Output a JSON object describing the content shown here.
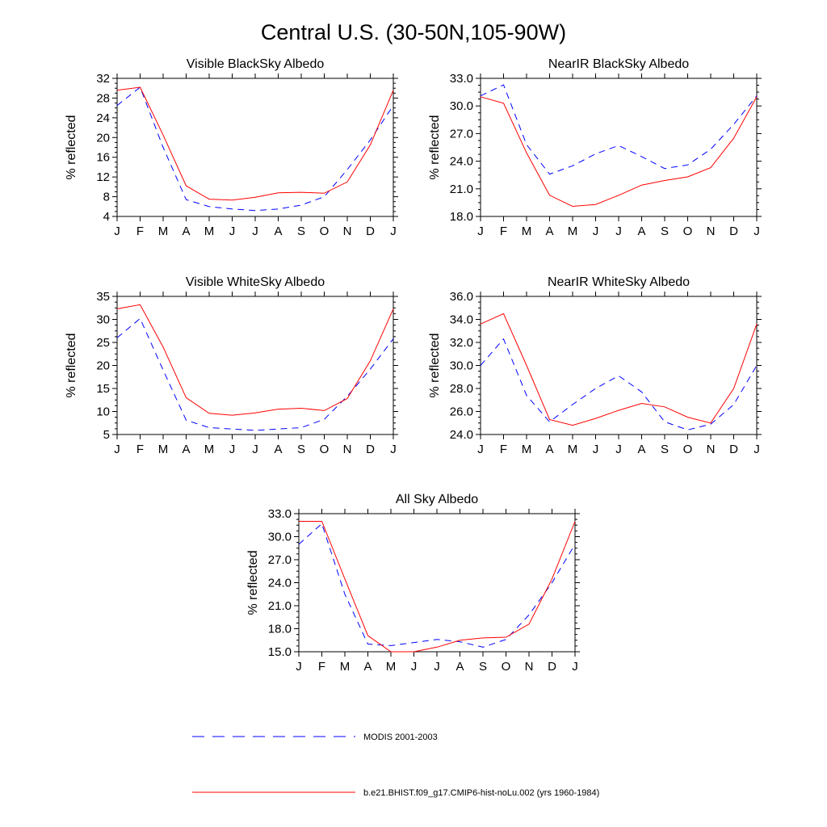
{
  "figure": {
    "title": "Central U.S. (30-50N,105-90W)",
    "colors": {
      "modis": "#0000ff",
      "model": "#ff0000"
    }
  },
  "legend": {
    "entries": [
      {
        "label": "MODIS 2001-2003",
        "style": "dashed",
        "color": "#0000ff"
      },
      {
        "label": "b.e21.BHIST.f09_g17.CMIP6-hist-noLu.002 (yrs 1960-1984)",
        "style": "solid",
        "color": "#ff0000"
      }
    ]
  },
  "chart_data": [
    {
      "type": "line",
      "title": "Visible BlackSky Albedo",
      "xlabel": "",
      "ylabel": "% reflected",
      "categories": [
        "J",
        "F",
        "M",
        "A",
        "M",
        "J",
        "J",
        "A",
        "S",
        "O",
        "N",
        "D",
        "J"
      ],
      "ylim": [
        4,
        32
      ],
      "yticks": [
        "4",
        "8",
        "12",
        "16",
        "20",
        "24",
        "28",
        "32"
      ],
      "series": [
        {
          "values": [
            26.5,
            30.2,
            18.0,
            7.4,
            6.0,
            5.5,
            5.2,
            5.5,
            6.3,
            8.0,
            13.5,
            19.5,
            26.5
          ]
        },
        {
          "values": [
            29.6,
            30.2,
            20.5,
            10.2,
            7.5,
            7.3,
            7.9,
            8.8,
            8.9,
            8.7,
            11.0,
            18.5,
            29.6
          ]
        }
      ]
    },
    {
      "type": "line",
      "title": "NearIR BlackSky Albedo",
      "xlabel": "",
      "ylabel": "% reflected",
      "categories": [
        "J",
        "F",
        "M",
        "A",
        "M",
        "J",
        "J",
        "A",
        "S",
        "O",
        "N",
        "D",
        "J"
      ],
      "ylim": [
        18.0,
        33.0
      ],
      "yticks": [
        "18.0",
        "21.0",
        "24.0",
        "27.0",
        "30.0",
        "33.0"
      ],
      "series": [
        {
          "values": [
            31.1,
            32.3,
            25.8,
            22.6,
            23.5,
            24.8,
            25.7,
            24.5,
            23.2,
            23.6,
            25.3,
            28.0,
            31.1
          ]
        },
        {
          "values": [
            31.0,
            30.3,
            24.9,
            20.3,
            19.1,
            19.3,
            20.3,
            21.4,
            21.9,
            22.3,
            23.3,
            26.5,
            31.0
          ]
        }
      ]
    },
    {
      "type": "line",
      "title": "Visible WhiteSky Albedo",
      "xlabel": "",
      "ylabel": "% reflected",
      "categories": [
        "J",
        "F",
        "M",
        "A",
        "M",
        "J",
        "J",
        "A",
        "S",
        "O",
        "N",
        "D",
        "J"
      ],
      "ylim": [
        5,
        35
      ],
      "yticks": [
        "5",
        "10",
        "15",
        "20",
        "25",
        "30",
        "35"
      ],
      "series": [
        {
          "values": [
            26.0,
            30.2,
            19.0,
            8.1,
            6.5,
            6.2,
            5.9,
            6.2,
            6.5,
            8.3,
            13.3,
            19.2,
            25.8
          ]
        },
        {
          "values": [
            32.3,
            33.2,
            24.0,
            13.0,
            9.6,
            9.2,
            9.7,
            10.5,
            10.7,
            10.2,
            12.8,
            21.0,
            32.3
          ]
        }
      ]
    },
    {
      "type": "line",
      "title": "NearIR WhiteSky Albedo",
      "xlabel": "",
      "ylabel": "% reflected",
      "categories": [
        "J",
        "F",
        "M",
        "A",
        "M",
        "J",
        "J",
        "A",
        "S",
        "O",
        "N",
        "D",
        "J"
      ],
      "ylim": [
        24.0,
        36.0
      ],
      "yticks": [
        "24.0",
        "26.0",
        "28.0",
        "30.0",
        "32.0",
        "34.0",
        "36.0"
      ],
      "series": [
        {
          "values": [
            30.0,
            32.3,
            27.4,
            25.1,
            26.6,
            28.0,
            29.1,
            27.7,
            25.1,
            24.4,
            24.9,
            26.6,
            30.0
          ]
        },
        {
          "values": [
            33.6,
            34.5,
            30.0,
            25.3,
            24.8,
            25.4,
            26.1,
            26.7,
            26.4,
            25.5,
            25.0,
            28.0,
            33.6
          ]
        }
      ]
    },
    {
      "type": "line",
      "title": "All Sky Albedo",
      "xlabel": "",
      "ylabel": "% reflected",
      "categories": [
        "J",
        "F",
        "M",
        "A",
        "M",
        "J",
        "J",
        "A",
        "S",
        "O",
        "N",
        "D",
        "J"
      ],
      "ylim": [
        15.0,
        33.0
      ],
      "yticks": [
        "15.0",
        "18.0",
        "21.0",
        "24.0",
        "27.0",
        "30.0",
        "33.0"
      ],
      "series": [
        {
          "values": [
            29.0,
            31.7,
            22.5,
            16.0,
            15.8,
            16.2,
            16.6,
            16.3,
            15.6,
            16.6,
            19.8,
            24.0,
            29.0
          ]
        },
        {
          "values": [
            32.0,
            32.0,
            24.5,
            17.1,
            15.0,
            15.0,
            15.6,
            16.5,
            16.8,
            16.9,
            18.6,
            24.5,
            32.0
          ]
        }
      ]
    }
  ]
}
